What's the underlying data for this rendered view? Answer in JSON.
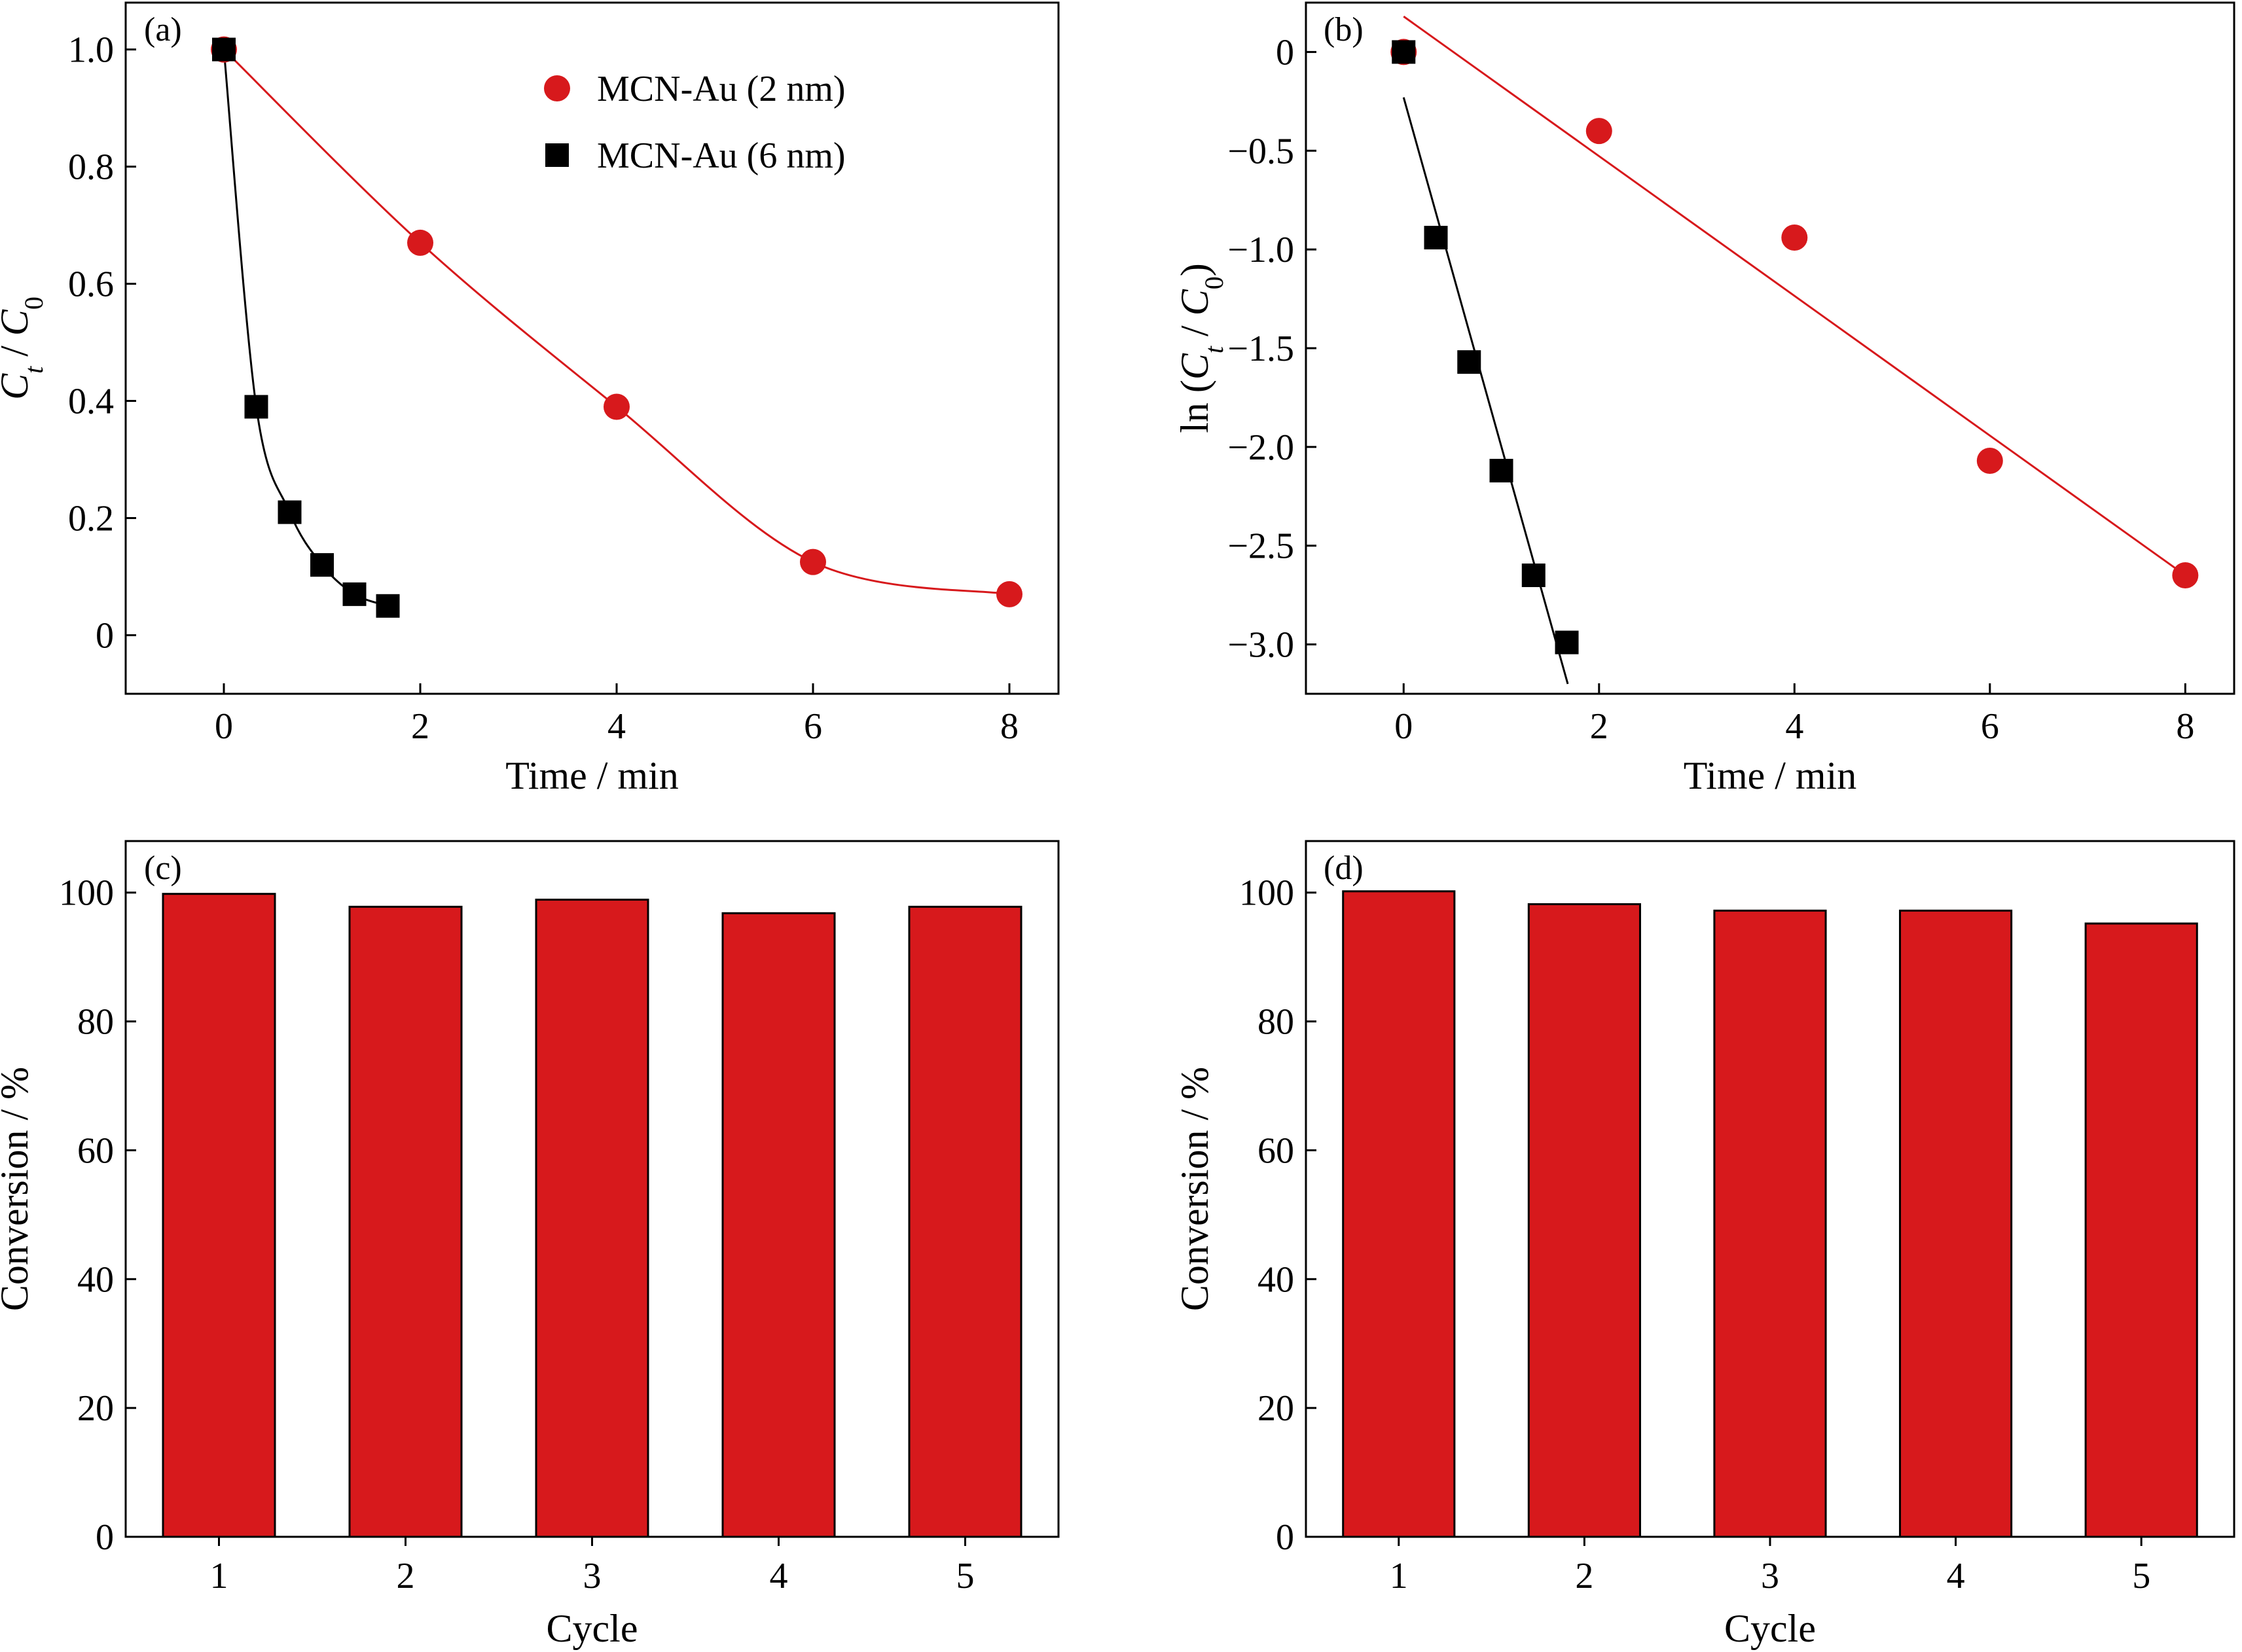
{
  "chart_data": [
    {
      "id": "a",
      "panel_label": "(a)",
      "type": "scatter",
      "xlabel": "Time / min",
      "ylabel_parts": [
        "C",
        "t",
        " / ",
        "C",
        "0"
      ],
      "xlim": [
        -1,
        8.5
      ],
      "ylim": [
        -0.1,
        1.08
      ],
      "xticks": [
        0,
        2,
        4,
        6,
        8
      ],
      "xtick_labels": [
        "0",
        "2",
        "4",
        "6",
        "8"
      ],
      "yticks": [
        0,
        0.2,
        0.4,
        0.6,
        0.8,
        1.0
      ],
      "ytick_labels": [
        "0",
        "0.2",
        "0.4",
        "0.6",
        "0.8",
        "1.0"
      ],
      "legend_position": "top-right",
      "series": [
        {
          "name": "MCN-Au (2 nm)",
          "marker": "circle",
          "color": "#d7191c",
          "x": [
            0,
            2,
            4,
            6,
            8
          ],
          "y": [
            1.0,
            0.67,
            0.39,
            0.125,
            0.07
          ],
          "fit": "smooth"
        },
        {
          "name": "MCN-Au (6 nm)",
          "marker": "square",
          "color": "#000000",
          "x": [
            0,
            0.33,
            0.67,
            1.0,
            1.33,
            1.67
          ],
          "y": [
            1.0,
            0.39,
            0.21,
            0.12,
            0.07,
            0.05
          ],
          "fit": "smooth"
        }
      ]
    },
    {
      "id": "b",
      "panel_label": "(b)",
      "type": "scatter",
      "xlabel": "Time / min",
      "ylabel_parts": [
        "ln (",
        "C",
        "t",
        " / ",
        "C",
        "0",
        ")"
      ],
      "xlim": [
        -1,
        8.5
      ],
      "ylim": [
        -3.25,
        0.25
      ],
      "xticks": [
        0,
        2,
        4,
        6,
        8
      ],
      "xtick_labels": [
        "0",
        "2",
        "4",
        "6",
        "8"
      ],
      "yticks": [
        0,
        -0.5,
        -1.0,
        -1.5,
        -2.0,
        -2.5,
        -3.0
      ],
      "ytick_labels": [
        "0",
        "−0.5",
        "−1.0",
        "−1.5",
        "−2.0",
        "−2.5",
        "−3.0"
      ],
      "series": [
        {
          "marker": "circle",
          "color": "#d7191c",
          "x": [
            0,
            2,
            4,
            6,
            8
          ],
          "y": [
            0,
            -0.4,
            -0.94,
            -2.07,
            -2.65
          ],
          "fit_line": {
            "x": [
              0,
              8
            ],
            "y": [
              0.18,
              -2.65
            ]
          }
        },
        {
          "marker": "square",
          "color": "#000000",
          "x": [
            0,
            0.33,
            0.67,
            1.0,
            1.33,
            1.67
          ],
          "y": [
            0,
            -0.94,
            -1.57,
            -2.12,
            -2.65,
            -2.99
          ],
          "fit_line": {
            "x": [
              0,
              1.68
            ],
            "y": [
              -0.23,
              -3.2
            ]
          }
        }
      ]
    },
    {
      "id": "c",
      "panel_label": "(c)",
      "type": "bar",
      "xlabel": "Cycle",
      "ylabel": "Conversion / %",
      "categories": [
        "1",
        "2",
        "3",
        "4",
        "5"
      ],
      "values": [
        99.8,
        97.8,
        98.9,
        96.8,
        97.8
      ],
      "bar_color": "#d7191c",
      "ylim": [
        0,
        108
      ],
      "yticks": [
        0,
        20,
        40,
        60,
        80,
        100
      ],
      "ytick_labels": [
        "0",
        "20",
        "40",
        "60",
        "80",
        "100"
      ]
    },
    {
      "id": "d",
      "panel_label": "(d)",
      "type": "bar",
      "xlabel": "Cycle",
      "ylabel": "Conversion / %",
      "categories": [
        "1",
        "2",
        "3",
        "4",
        "5"
      ],
      "values": [
        100.2,
        98.2,
        97.2,
        97.2,
        95.2
      ],
      "bar_color": "#d7191c",
      "ylim": [
        0,
        108
      ],
      "yticks": [
        0,
        20,
        40,
        60,
        80,
        100
      ],
      "ytick_labels": [
        "0",
        "20",
        "40",
        "60",
        "80",
        "100"
      ]
    }
  ]
}
